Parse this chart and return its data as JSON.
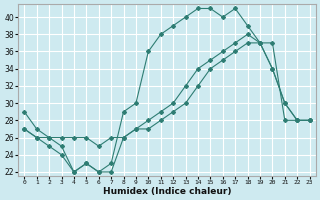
{
  "xlabel": "Humidex (Indice chaleur)",
  "ylabel": "",
  "xlim": [
    -0.5,
    23.5
  ],
  "ylim": [
    21.5,
    41.5
  ],
  "yticks": [
    22,
    24,
    26,
    28,
    30,
    32,
    34,
    36,
    38,
    40
  ],
  "xticks": [
    0,
    1,
    2,
    3,
    4,
    5,
    6,
    7,
    8,
    9,
    10,
    11,
    12,
    13,
    14,
    15,
    16,
    17,
    18,
    19,
    20,
    21,
    22,
    23
  ],
  "background_color": "#ceeaf0",
  "grid_color": "#ffffff",
  "line_color": "#2e7d73",
  "line1_y": [
    29,
    27,
    26,
    25,
    22,
    23,
    22,
    23,
    29,
    30,
    36,
    38,
    39,
    40,
    41,
    41,
    40,
    41,
    39,
    37,
    34,
    30,
    28,
    28
  ],
  "line2_y": [
    27,
    26,
    26,
    26,
    26,
    26,
    25,
    26,
    26,
    27,
    27,
    28,
    29,
    30,
    32,
    34,
    35,
    36,
    37,
    37,
    37,
    28,
    28,
    28
  ],
  "line3_y": [
    27,
    26,
    25,
    24,
    22,
    23,
    22,
    22,
    26,
    27,
    28,
    29,
    30,
    32,
    34,
    35,
    36,
    37,
    38,
    37,
    34,
    30,
    28,
    28
  ]
}
